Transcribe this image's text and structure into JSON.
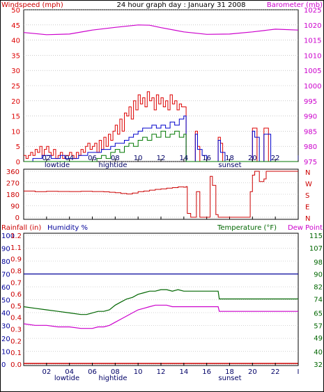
{
  "title": "24 hour graph day : January 31 2008",
  "colors": {
    "wind": "#dd0000",
    "gust": "#dd0000",
    "avgwind": "#0000cc",
    "wind_green": "#007700",
    "barometer": "#cc00cc",
    "direction": "#cc0000",
    "rainfall": "#cc0000",
    "humidity": "#000099",
    "temperature": "#006600",
    "dewpoint": "#cc00cc",
    "grid": "#aaaaaa",
    "frame": "#000000"
  },
  "x_axis": {
    "ticks": [
      "02",
      "04",
      "06",
      "08",
      "10",
      "12",
      "14",
      "16",
      "18",
      "20",
      "22",
      "I"
    ],
    "markers": {
      "lowtide": "lowtide",
      "hightide": "hightide",
      "sunset": "sunset"
    }
  },
  "panel1": {
    "left_label": "Windspeed (mph)",
    "right_label": "Barometer (mb)",
    "left_ticks": [
      "0",
      "5",
      "10",
      "15",
      "20",
      "25",
      "30",
      "35",
      "40",
      "45",
      "50"
    ],
    "right_ticks": [
      "975",
      "980",
      "985",
      "990",
      "995",
      "1000",
      "1005",
      "1010",
      "1015",
      "1020",
      "1025"
    ]
  },
  "panel2": {
    "left_ticks": [
      "360",
      "270",
      "180",
      "90",
      "0"
    ],
    "right_letters": [
      "N",
      "W",
      "S",
      "E",
      "N"
    ]
  },
  "panel3": {
    "rain_label": "Rainfall (in)",
    "humidity_label": "Humidity %",
    "temp_label": "Temperature (°F)",
    "dew_label": "Dew Point",
    "humidity_ticks": [
      "0",
      "10",
      "20",
      "30",
      "40",
      "50",
      "60",
      "70",
      "80",
      "90",
      "100"
    ],
    "rain_ticks": [
      "0.0",
      "0.1",
      "0.2",
      "0.3",
      "0.4",
      "0.5",
      "0.6",
      "0.7",
      "0.8",
      "0.9",
      "1.1",
      "1.2"
    ],
    "temp_ticks": [
      "32",
      "40",
      "49",
      "57",
      "65",
      "74",
      "82",
      "90",
      "98",
      "107",
      "115"
    ]
  },
  "chart_data": [
    {
      "type": "line",
      "panel": "wind-barometer",
      "xlabel": "",
      "ylabel": "Windspeed (mph)",
      "y2label": "Barometer (mb)",
      "xlim": [
        0,
        24
      ],
      "ylim": [
        0,
        50
      ],
      "y2lim": [
        975,
        1025
      ],
      "series": [
        {
          "name": "Barometer (mb)",
          "axis": "right",
          "x": [
            0,
            2,
            4,
            6,
            8,
            10,
            11,
            12,
            14,
            16,
            18,
            20,
            22,
            24
          ],
          "y": [
            1017.5,
            1016.8,
            1017.0,
            1018.3,
            1019.2,
            1020.0,
            1019.9,
            1019.1,
            1017.7,
            1016.9,
            1017.0,
            1017.7,
            1018.6,
            1018.3
          ]
        },
        {
          "axis": "left",
          "role": "gust",
          "x": [
            0,
            0.2,
            0.4,
            0.6,
            0.8,
            1.0,
            1.2,
            1.4,
            1.6,
            1.8,
            2.0,
            2.2,
            2.4,
            2.6,
            2.8,
            3.0,
            3.2,
            3.4,
            3.6,
            3.8,
            4.0,
            4.2,
            4.4,
            4.6,
            4.8,
            5.0,
            5.2,
            5.4,
            5.6,
            5.8,
            6.0,
            6.2,
            6.4,
            6.6,
            6.8,
            7.0,
            7.2,
            7.4,
            7.6,
            7.8,
            8.0,
            8.2,
            8.4,
            8.6,
            8.8,
            9.0,
            9.2,
            9.4,
            9.6,
            9.8,
            10.0,
            10.2,
            10.4,
            10.6,
            10.8,
            11.0,
            11.2,
            11.4,
            11.6,
            11.8,
            12.0,
            12.2,
            12.4,
            12.6,
            12.8,
            13.0,
            13.2,
            13.4,
            13.6,
            13.8,
            14.0,
            14.2,
            14.4,
            14.6,
            14.8,
            15.0,
            15.2,
            15.4,
            15.6,
            15.8,
            16.0,
            16.2,
            16.4,
            16.6,
            16.8,
            17.0,
            17.2,
            17.4,
            17.6,
            17.8,
            18.0,
            18.2,
            18.4,
            18.6,
            18.8,
            19.0,
            19.2,
            19.4,
            19.6,
            19.8,
            20.0,
            20.2,
            20.4,
            20.6,
            20.8,
            21.0,
            21.2,
            21.4,
            21.6,
            21.8,
            22.0,
            22.4,
            22.8,
            23.2,
            23.6,
            24.0
          ],
          "y": [
            2,
            1,
            2,
            3,
            2,
            4,
            3,
            5,
            2,
            4,
            5,
            3,
            2,
            4,
            1,
            2,
            3,
            1,
            2,
            2,
            3,
            2,
            1,
            3,
            2,
            4,
            3,
            5,
            6,
            4,
            5,
            6,
            3,
            7,
            4,
            8,
            5,
            9,
            7,
            10,
            12,
            9,
            14,
            10,
            16,
            15,
            18,
            14,
            20,
            17,
            22,
            19,
            21,
            18,
            23,
            20,
            21,
            17,
            22,
            19,
            21,
            18,
            20,
            17,
            22,
            19,
            20,
            17,
            19,
            18,
            18,
            0,
            0,
            0,
            0,
            10,
            5,
            0,
            0,
            0,
            0,
            0,
            0,
            0,
            0,
            8,
            6,
            0,
            0,
            0,
            0,
            0,
            0,
            0,
            0,
            0,
            0,
            0,
            0,
            0,
            11,
            11,
            0,
            0,
            0,
            11,
            11,
            0,
            0,
            0,
            0,
            0,
            0,
            0,
            0,
            0
          ]
        },
        {
          "axis": "left",
          "role": "average",
          "x": [
            0,
            0.4,
            0.8,
            1.2,
            1.6,
            2.0,
            2.4,
            2.8,
            3.2,
            3.6,
            4.0,
            4.4,
            4.8,
            5.2,
            5.6,
            6.0,
            6.4,
            6.8,
            7.2,
            7.6,
            8.0,
            8.4,
            8.8,
            9.2,
            9.6,
            10.0,
            10.4,
            10.8,
            11.2,
            11.6,
            12.0,
            12.4,
            12.8,
            13.2,
            13.6,
            14.0,
            14.2,
            14.6,
            15.0,
            15.2,
            15.6,
            16.0,
            17.0,
            17.2,
            17.6,
            18.0,
            20.0,
            20.2,
            20.6,
            21.0,
            21.2,
            21.6,
            24.0
          ],
          "y": [
            0,
            0,
            1,
            1,
            2,
            2,
            1,
            1,
            2,
            1,
            1,
            1,
            2,
            2,
            3,
            3,
            3,
            4,
            4,
            5,
            6,
            6,
            7,
            8,
            9,
            10,
            11,
            11,
            12,
            11,
            12,
            11,
            13,
            12,
            14,
            15,
            0,
            0,
            9,
            4,
            2,
            0,
            7,
            3,
            0,
            0,
            10,
            8,
            0,
            9,
            9,
            0,
            0
          ]
        },
        {
          "axis": "left",
          "role": "green",
          "x": [
            0,
            4,
            6,
            6.4,
            6.8,
            7.2,
            7.6,
            8.0,
            8.4,
            8.8,
            9.2,
            9.6,
            10.0,
            10.4,
            10.8,
            11.2,
            11.6,
            12.0,
            12.4,
            12.8,
            13.2,
            13.6,
            14.0,
            14.2,
            24.0
          ],
          "y": [
            0,
            0,
            0,
            1,
            2,
            1,
            3,
            4,
            3,
            5,
            6,
            5,
            7,
            8,
            7,
            9,
            8,
            10,
            8,
            9,
            10,
            8,
            9,
            0,
            0
          ]
        }
      ]
    },
    {
      "type": "line",
      "panel": "wind-direction",
      "ylabel": "",
      "xlim": [
        0,
        24
      ],
      "ylim": [
        0,
        360
      ],
      "series": [
        {
          "axis": "left",
          "x": [
            0,
            1,
            2,
            3,
            4,
            5,
            6,
            7,
            7.5,
            8,
            8.5,
            9,
            9.5,
            10,
            10.5,
            11,
            11.5,
            12,
            12.5,
            13,
            13.5,
            14,
            14.2,
            14.3,
            14.6,
            15.0,
            15.1,
            15.4,
            16.0,
            16.2,
            16.3,
            16.5,
            16.8,
            17.0,
            17.2,
            17.4,
            18.0,
            19.0,
            19.5,
            19.8,
            20.0,
            20.2,
            20.6,
            21.0,
            21.2,
            22.0,
            23.0,
            24.0
          ],
          "y": [
            205,
            200,
            203,
            202,
            201,
            203,
            201,
            199,
            196,
            192,
            186,
            182,
            190,
            200,
            205,
            212,
            218,
            222,
            228,
            232,
            238,
            235,
            240,
            30,
            0,
            0,
            200,
            0,
            0,
            0,
            320,
            250,
            20,
            0,
            0,
            0,
            0,
            0,
            0,
            200,
            330,
            360,
            280,
            300,
            360,
            360,
            360,
            360
          ]
        }
      ]
    },
    {
      "type": "line",
      "panel": "rain-humidity-temp",
      "xlim": [
        0,
        24
      ],
      "ylim": [
        0,
        100
      ],
      "y2lim": [
        32,
        115
      ],
      "series": [
        {
          "name": "Humidity %",
          "axis": "left",
          "x": [
            0,
            24
          ],
          "y": [
            70,
            70
          ]
        },
        {
          "name": "Rainfall (in)",
          "axis": "rain",
          "x": [
            0,
            24
          ],
          "y": [
            0.0,
            0.0
          ]
        },
        {
          "name": "Temperature (°F)",
          "axis": "right",
          "x": [
            0,
            1,
            2,
            3,
            4,
            5,
            5.5,
            6,
            6.5,
            7,
            7.5,
            8,
            8.5,
            9,
            9.5,
            10,
            10.5,
            11,
            11.5,
            12,
            12.5,
            13,
            13.5,
            14,
            15,
            16,
            17,
            17.1,
            18,
            20,
            22,
            24
          ],
          "y": [
            69,
            68,
            67,
            66,
            65,
            64,
            64,
            65,
            66,
            66,
            67,
            70,
            72,
            74,
            75,
            77,
            78,
            79,
            79,
            80,
            80,
            79,
            80,
            79,
            79,
            79,
            79,
            74,
            74,
            74,
            74,
            74
          ]
        },
        {
          "name": "Dew Point",
          "axis": "right",
          "x": [
            0,
            1,
            2,
            3,
            4,
            5,
            5.5,
            6,
            6.5,
            7,
            7.5,
            8,
            8.5,
            9,
            9.5,
            10,
            10.5,
            11,
            11.5,
            12,
            12.5,
            13,
            13.5,
            14,
            15,
            16,
            17,
            17.1,
            18,
            20,
            22,
            24
          ],
          "y": [
            58,
            57,
            57,
            56,
            56,
            55,
            55,
            55,
            56,
            56,
            57,
            59,
            61,
            63,
            65,
            67,
            68,
            69,
            70,
            70,
            70,
            69,
            69,
            69,
            69,
            69,
            69,
            66,
            66,
            66,
            66,
            66
          ]
        }
      ]
    }
  ]
}
